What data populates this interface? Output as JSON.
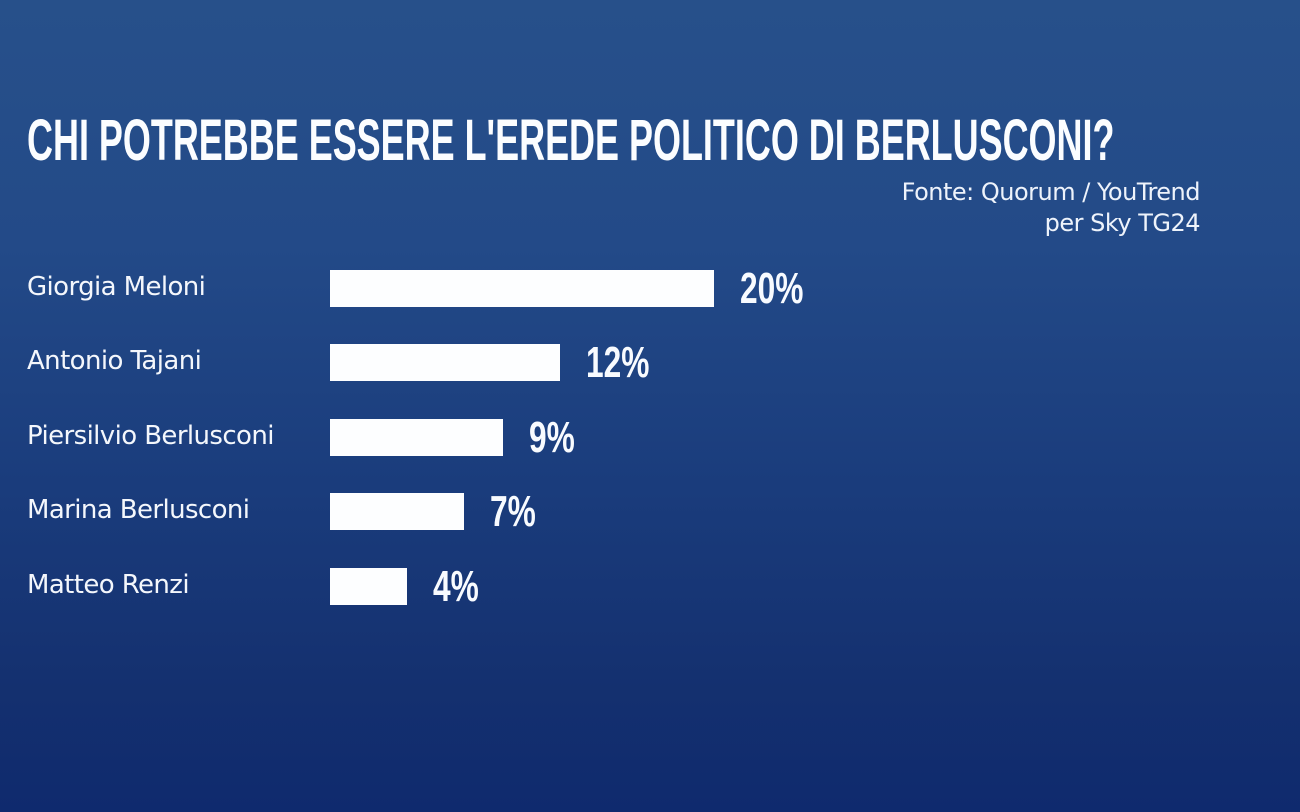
{
  "title": "CHI POTREBBE ESSERE L'EREDE POLITICO DI BERLUSCONI?",
  "source": {
    "line1": "Fonte: Quorum / YouTrend",
    "line2": "per Sky TG24"
  },
  "colors": {
    "background_top": "#27508a",
    "background_bottom": "#0f2a6e",
    "bar": "#ffffff",
    "text": "#ffffff"
  },
  "rows": [
    {
      "label": "Giorgia Meloni",
      "value_label": "20%",
      "value": 20
    },
    {
      "label": "Antonio Tajani",
      "value_label": "12%",
      "value": 12
    },
    {
      "label": "Piersilvio Berlusconi",
      "value_label": "9%",
      "value": 9
    },
    {
      "label": "Marina Berlusconi",
      "value_label": "7%",
      "value": 7
    },
    {
      "label": "Matteo Renzi",
      "value_label": "4%",
      "value": 4
    }
  ],
  "chart_data": {
    "type": "bar",
    "orientation": "horizontal",
    "title": "CHI POTREBBE ESSERE L'EREDE POLITICO DI BERLUSCONI?",
    "subtitle": "Fonte: Quorum / YouTrend per Sky TG24",
    "categories": [
      "Giorgia Meloni",
      "Antonio Tajani",
      "Piersilvio Berlusconi",
      "Marina Berlusconi",
      "Matteo Renzi"
    ],
    "values": [
      20,
      12,
      9,
      7,
      4
    ],
    "value_labels": [
      "20%",
      "12%",
      "9%",
      "7%",
      "4%"
    ],
    "unit": "%",
    "xlabel": "",
    "ylabel": "",
    "grid": false,
    "legend": "none"
  }
}
